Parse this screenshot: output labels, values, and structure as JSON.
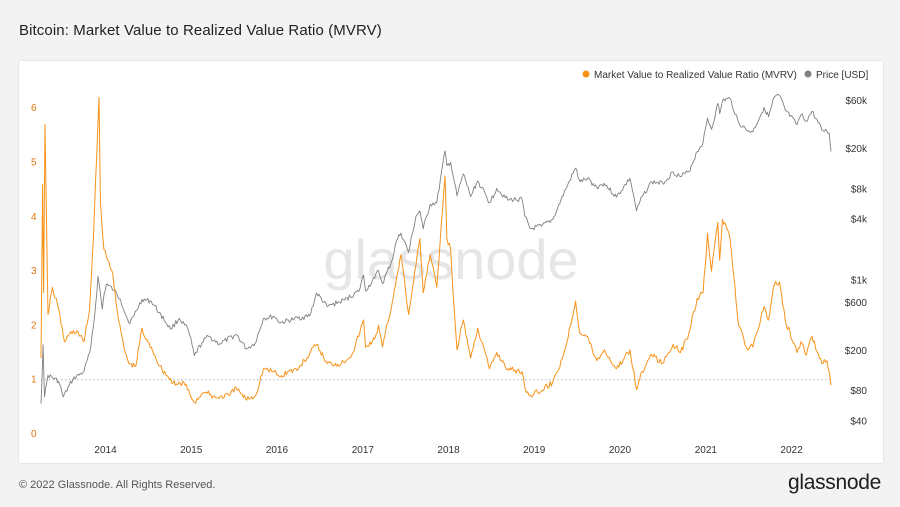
{
  "page": {
    "title": "Bitcoin: Market Value to Realized Value Ratio (MVRV)",
    "copyright": "© 2022 Glassnode. All Rights Reserved.",
    "brand": "glassnode",
    "watermark": "glassnode"
  },
  "colors": {
    "mvrv": "#f7931a",
    "price": "#808080",
    "left_axis_text": "#e2760e",
    "grid_ref": "#b0b0b0"
  },
  "chart_data": {
    "type": "line",
    "title": "Bitcoin: Market Value to Realized Value Ratio (MVRV)",
    "legend_position": "top-right",
    "x_axis": {
      "type": "time",
      "range": [
        "2013-04-01",
        "2022-06-18"
      ],
      "ticks": [
        "2014",
        "2015",
        "2016",
        "2017",
        "2018",
        "2019",
        "2020",
        "2021",
        "2022"
      ]
    },
    "y_left": {
      "label": "",
      "range": [
        0,
        6.5
      ],
      "ticks": [
        "0",
        "1",
        "2",
        "3",
        "4",
        "5",
        "6"
      ]
    },
    "y_right": {
      "label": "",
      "scale": "log",
      "range": [
        30,
        95000
      ],
      "ticks": [
        {
          "value": 40,
          "label": "$40"
        },
        {
          "value": 80,
          "label": "$80"
        },
        {
          "value": 200,
          "label": "$200"
        },
        {
          "value": 600,
          "label": "$600"
        },
        {
          "value": 1000,
          "label": "$1k"
        },
        {
          "value": 4000,
          "label": "$4k"
        },
        {
          "value": 8000,
          "label": "$8k"
        },
        {
          "value": 20000,
          "label": "$20k"
        },
        {
          "value": 60000,
          "label": "$60k"
        }
      ]
    },
    "reference_line": {
      "axis": "left",
      "value": 1
    },
    "series": [
      {
        "name": "Market Value to Realized Value Ratio (MVRV)",
        "axis": "left",
        "points": [
          [
            "2013-04-01",
            1.4
          ],
          [
            "2013-04-08",
            4.6
          ],
          [
            "2013-04-12",
            2.6
          ],
          [
            "2013-04-18",
            5.7
          ],
          [
            "2013-05-01",
            2.2
          ],
          [
            "2013-05-20",
            2.7
          ],
          [
            "2013-06-15",
            2.3
          ],
          [
            "2013-07-10",
            1.7
          ],
          [
            "2013-08-01",
            1.85
          ],
          [
            "2013-09-01",
            1.9
          ],
          [
            "2013-10-01",
            1.7
          ],
          [
            "2013-10-25",
            2.3
          ],
          [
            "2013-11-10",
            3.6
          ],
          [
            "2013-11-25",
            5.2
          ],
          [
            "2013-12-04",
            6.2
          ],
          [
            "2013-12-10",
            4.3
          ],
          [
            "2013-12-25",
            3.4
          ],
          [
            "2014-01-10",
            3.2
          ],
          [
            "2014-02-01",
            2.95
          ],
          [
            "2014-02-25",
            2.1
          ],
          [
            "2014-03-20",
            1.6
          ],
          [
            "2014-04-10",
            1.3
          ],
          [
            "2014-05-10",
            1.25
          ],
          [
            "2014-06-05",
            1.95
          ],
          [
            "2014-06-20",
            1.75
          ],
          [
            "2014-07-15",
            1.6
          ],
          [
            "2014-08-20",
            1.25
          ],
          [
            "2014-09-25",
            1.05
          ],
          [
            "2014-10-25",
            0.9
          ],
          [
            "2014-12-01",
            0.95
          ],
          [
            "2015-01-14",
            0.58
          ],
          [
            "2015-02-15",
            0.75
          ],
          [
            "2015-03-10",
            0.75
          ],
          [
            "2015-04-15",
            0.67
          ],
          [
            "2015-06-15",
            0.72
          ],
          [
            "2015-07-12",
            0.85
          ],
          [
            "2015-08-20",
            0.65
          ],
          [
            "2015-10-01",
            0.7
          ],
          [
            "2015-11-04",
            1.2
          ],
          [
            "2015-12-20",
            1.15
          ],
          [
            "2016-01-15",
            1.05
          ],
          [
            "2016-02-15",
            1.15
          ],
          [
            "2016-04-01",
            1.2
          ],
          [
            "2016-06-18",
            1.65
          ],
          [
            "2016-08-02",
            1.3
          ],
          [
            "2016-10-01",
            1.3
          ],
          [
            "2016-11-20",
            1.5
          ],
          [
            "2017-01-04",
            2.1
          ],
          [
            "2017-01-12",
            1.6
          ],
          [
            "2017-02-20",
            1.75
          ],
          [
            "2017-03-08",
            2.0
          ],
          [
            "2017-03-25",
            1.6
          ],
          [
            "2017-05-05",
            2.4
          ],
          [
            "2017-05-25",
            2.9
          ],
          [
            "2017-06-12",
            3.3
          ],
          [
            "2017-07-15",
            2.2
          ],
          [
            "2017-08-15",
            3.1
          ],
          [
            "2017-09-01",
            3.6
          ],
          [
            "2017-09-15",
            2.6
          ],
          [
            "2017-10-15",
            3.3
          ],
          [
            "2017-11-12",
            2.7
          ],
          [
            "2017-12-17",
            4.75
          ],
          [
            "2017-12-25",
            3.6
          ],
          [
            "2018-01-10",
            3.4
          ],
          [
            "2018-01-20",
            2.6
          ],
          [
            "2018-02-06",
            1.55
          ],
          [
            "2018-03-05",
            2.1
          ],
          [
            "2018-04-05",
            1.4
          ],
          [
            "2018-05-05",
            1.95
          ],
          [
            "2018-06-25",
            1.2
          ],
          [
            "2018-07-25",
            1.5
          ],
          [
            "2018-09-10",
            1.2
          ],
          [
            "2018-11-10",
            1.15
          ],
          [
            "2018-11-22",
            0.85
          ],
          [
            "2018-12-15",
            0.72
          ],
          [
            "2019-02-01",
            0.8
          ],
          [
            "2019-03-20",
            0.95
          ],
          [
            "2019-04-10",
            1.15
          ],
          [
            "2019-05-15",
            1.6
          ],
          [
            "2019-06-26",
            2.45
          ],
          [
            "2019-07-15",
            1.85
          ],
          [
            "2019-08-15",
            1.8
          ],
          [
            "2019-09-24",
            1.35
          ],
          [
            "2019-10-26",
            1.55
          ],
          [
            "2019-12-17",
            1.2
          ],
          [
            "2020-02-13",
            1.55
          ],
          [
            "2020-03-12",
            0.82
          ],
          [
            "2020-04-05",
            1.15
          ],
          [
            "2020-05-15",
            1.45
          ],
          [
            "2020-07-01",
            1.3
          ],
          [
            "2020-08-15",
            1.65
          ],
          [
            "2020-09-15",
            1.5
          ],
          [
            "2020-10-20",
            1.85
          ],
          [
            "2020-11-25",
            2.5
          ],
          [
            "2020-12-20",
            2.6
          ],
          [
            "2021-01-08",
            3.7
          ],
          [
            "2021-01-25",
            3.0
          ],
          [
            "2021-02-21",
            3.9
          ],
          [
            "2021-03-01",
            3.2
          ],
          [
            "2021-03-13",
            3.95
          ],
          [
            "2021-04-14",
            3.6
          ],
          [
            "2021-05-20",
            2.0
          ],
          [
            "2021-06-22",
            1.6
          ],
          [
            "2021-07-20",
            1.6
          ],
          [
            "2021-09-06",
            2.35
          ],
          [
            "2021-09-25",
            2.1
          ],
          [
            "2021-10-20",
            2.75
          ],
          [
            "2021-11-10",
            2.8
          ],
          [
            "2021-12-05",
            2.1
          ],
          [
            "2022-01-24",
            1.5
          ],
          [
            "2022-02-10",
            1.7
          ],
          [
            "2022-03-05",
            1.45
          ],
          [
            "2022-03-29",
            1.8
          ],
          [
            "2022-05-10",
            1.3
          ],
          [
            "2022-06-01",
            1.35
          ],
          [
            "2022-06-10",
            1.15
          ],
          [
            "2022-06-18",
            0.9
          ]
        ]
      },
      {
        "name": "Price [USD]",
        "axis": "right",
        "points": [
          [
            "2013-04-01",
            60
          ],
          [
            "2013-04-10",
            230
          ],
          [
            "2013-04-16",
            70
          ],
          [
            "2013-05-01",
            115
          ],
          [
            "2013-06-15",
            100
          ],
          [
            "2013-07-05",
            70
          ],
          [
            "2013-08-15",
            105
          ],
          [
            "2013-10-01",
            125
          ],
          [
            "2013-10-25",
            190
          ],
          [
            "2013-11-15",
            430
          ],
          [
            "2013-11-30",
            1100
          ],
          [
            "2013-12-18",
            520
          ],
          [
            "2013-12-26",
            740
          ],
          [
            "2014-01-05",
            920
          ],
          [
            "2014-02-05",
            800
          ],
          [
            "2014-03-05",
            650
          ],
          [
            "2014-04-10",
            380
          ],
          [
            "2014-05-01",
            440
          ],
          [
            "2014-06-05",
            650
          ],
          [
            "2014-07-15",
            620
          ],
          [
            "2014-08-18",
            480
          ],
          [
            "2014-10-05",
            330
          ],
          [
            "2014-11-12",
            420
          ],
          [
            "2014-12-20",
            320
          ],
          [
            "2015-01-14",
            180
          ],
          [
            "2015-02-15",
            240
          ],
          [
            "2015-03-15",
            280
          ],
          [
            "2015-05-01",
            235
          ],
          [
            "2015-07-12",
            290
          ],
          [
            "2015-08-24",
            210
          ],
          [
            "2015-10-01",
            240
          ],
          [
            "2015-11-04",
            420
          ],
          [
            "2015-12-20",
            440
          ],
          [
            "2016-01-15",
            380
          ],
          [
            "2016-03-15",
            415
          ],
          [
            "2016-05-20",
            445
          ],
          [
            "2016-06-18",
            750
          ],
          [
            "2016-08-02",
            550
          ],
          [
            "2016-10-15",
            640
          ],
          [
            "2016-12-15",
            780
          ],
          [
            "2017-01-04",
            1130
          ],
          [
            "2017-01-12",
            790
          ],
          [
            "2017-02-20",
            1050
          ],
          [
            "2017-03-08",
            1260
          ],
          [
            "2017-03-25",
            930
          ],
          [
            "2017-05-05",
            1580
          ],
          [
            "2017-05-25",
            2500
          ],
          [
            "2017-06-12",
            2950
          ],
          [
            "2017-07-15",
            1900
          ],
          [
            "2017-08-15",
            4300
          ],
          [
            "2017-09-01",
            4900
          ],
          [
            "2017-09-15",
            3250
          ],
          [
            "2017-10-15",
            5700
          ],
          [
            "2017-11-12",
            5900
          ],
          [
            "2017-12-17",
            19200
          ],
          [
            "2017-12-25",
            13800
          ],
          [
            "2018-01-10",
            14800
          ],
          [
            "2018-02-06",
            6900
          ],
          [
            "2018-03-05",
            11400
          ],
          [
            "2018-04-05",
            6800
          ],
          [
            "2018-05-05",
            9700
          ],
          [
            "2018-06-25",
            5900
          ],
          [
            "2018-07-25",
            8200
          ],
          [
            "2018-09-10",
            6300
          ],
          [
            "2018-11-10",
            6400
          ],
          [
            "2018-11-22",
            4300
          ],
          [
            "2018-12-15",
            3250
          ],
          [
            "2019-02-01",
            3450
          ],
          [
            "2019-03-20",
            4000
          ],
          [
            "2019-04-10",
            5200
          ],
          [
            "2019-05-15",
            8000
          ],
          [
            "2019-06-26",
            13000
          ],
          [
            "2019-07-15",
            9500
          ],
          [
            "2019-08-15",
            10200
          ],
          [
            "2019-09-24",
            8400
          ],
          [
            "2019-10-26",
            9200
          ],
          [
            "2019-12-17",
            6700
          ],
          [
            "2020-02-13",
            10300
          ],
          [
            "2020-03-12",
            4900
          ],
          [
            "2020-04-05",
            6800
          ],
          [
            "2020-05-15",
            9500
          ],
          [
            "2020-07-01",
            9200
          ],
          [
            "2020-08-15",
            11900
          ],
          [
            "2020-09-15",
            10700
          ],
          [
            "2020-10-20",
            12000
          ],
          [
            "2020-11-25",
            19000
          ],
          [
            "2020-12-20",
            23500
          ],
          [
            "2021-01-08",
            40500
          ],
          [
            "2021-01-25",
            31500
          ],
          [
            "2021-02-21",
            57000
          ],
          [
            "2021-03-01",
            45000
          ],
          [
            "2021-03-13",
            61000
          ],
          [
            "2021-04-14",
            63500
          ],
          [
            "2021-05-20",
            37000
          ],
          [
            "2021-06-22",
            31000
          ],
          [
            "2021-07-20",
            29800
          ],
          [
            "2021-09-06",
            52000
          ],
          [
            "2021-09-25",
            42000
          ],
          [
            "2021-10-20",
            66000
          ],
          [
            "2021-11-10",
            68000
          ],
          [
            "2021-12-05",
            49000
          ],
          [
            "2022-01-24",
            35000
          ],
          [
            "2022-02-10",
            44000
          ],
          [
            "2022-03-05",
            38000
          ],
          [
            "2022-03-29",
            47500
          ],
          [
            "2022-05-10",
            31000
          ],
          [
            "2022-06-01",
            30000
          ],
          [
            "2022-06-10",
            29000
          ],
          [
            "2022-06-18",
            19000
          ]
        ]
      }
    ]
  }
}
